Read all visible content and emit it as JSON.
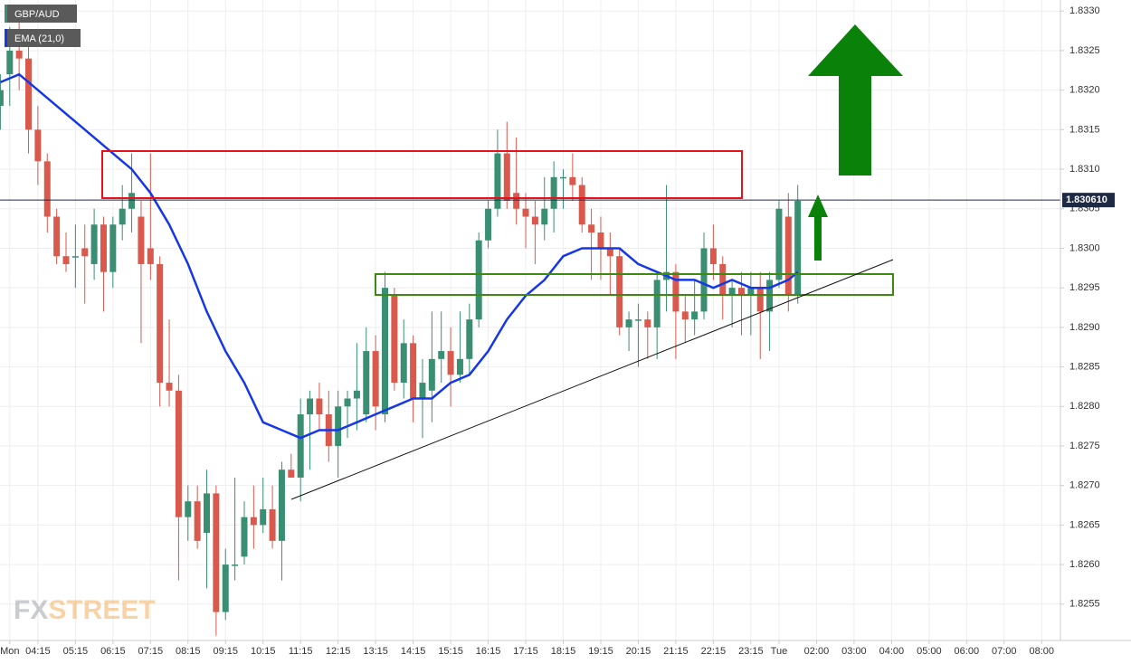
{
  "chart_data": {
    "type": "candlestick",
    "up_color": "#3a8f72",
    "down_color": "#d9594c",
    "grid": true,
    "xlim": [
      3.24,
      31.5
    ],
    "ylim": [
      1.82504,
      1.83314
    ],
    "xticks": [
      {
        "value": 3.5,
        "label": "Mon"
      },
      {
        "value": 4.25,
        "label": "04:15"
      },
      {
        "value": 5.25,
        "label": "05:15"
      },
      {
        "value": 6.25,
        "label": "06:15"
      },
      {
        "value": 7.25,
        "label": "07:15"
      },
      {
        "value": 8.25,
        "label": "08:15"
      },
      {
        "value": 9.25,
        "label": "09:15"
      },
      {
        "value": 10.25,
        "label": "10:15"
      },
      {
        "value": 11.25,
        "label": "11:15"
      },
      {
        "value": 12.25,
        "label": "12:15"
      },
      {
        "value": 13.25,
        "label": "13:15"
      },
      {
        "value": 14.25,
        "label": "14:15"
      },
      {
        "value": 15.25,
        "label": "15:15"
      },
      {
        "value": 16.25,
        "label": "16:15"
      },
      {
        "value": 17.25,
        "label": "17:15"
      },
      {
        "value": 18.25,
        "label": "18:15"
      },
      {
        "value": 19.25,
        "label": "19:15"
      },
      {
        "value": 20.25,
        "label": "20:15"
      },
      {
        "value": 21.25,
        "label": "21:15"
      },
      {
        "value": 22.25,
        "label": "22:15"
      },
      {
        "value": 23.25,
        "label": "23:15"
      },
      {
        "value": 24,
        "label": "Tue"
      },
      {
        "value": 25,
        "label": "02:00"
      },
      {
        "value": 26,
        "label": "03:00"
      },
      {
        "value": 27,
        "label": "04:00"
      },
      {
        "value": 28,
        "label": "05:00"
      },
      {
        "value": 29,
        "label": "06:00"
      },
      {
        "value": 30,
        "label": "07:00"
      },
      {
        "value": 31,
        "label": "08:00"
      }
    ],
    "yticks": [
      {
        "value": 1.833,
        "label": "1.8330"
      },
      1.8325,
      {
        "value": 1.832,
        "label": "1.8320"
      },
      1.8315,
      {
        "value": 1.831,
        "label": "1.8310"
      },
      1.8305,
      {
        "value": 1.83,
        "label": "1.8300"
      },
      1.8295,
      {
        "value": 1.829,
        "label": "1.8290"
      },
      1.8285,
      {
        "value": 1.828,
        "label": "1.8280"
      },
      1.8275,
      {
        "value": 1.827,
        "label": "1.8270"
      },
      1.8265,
      {
        "value": 1.826,
        "label": "1.8260"
      },
      1.8255
    ],
    "last_price": {
      "value": 1.83061,
      "label": "1.830610"
    },
    "watermark": [
      "FX",
      "STREET"
    ],
    "series": [
      {
        "name": "GBP/AUD",
        "x": [
          3.25,
          3.5,
          3.75,
          4,
          4.25,
          4.5,
          4.75,
          5,
          5.25,
          5.5,
          5.75,
          6,
          6.25,
          6.5,
          6.75,
          7,
          7.25,
          7.5,
          7.75,
          8,
          8.25,
          8.5,
          8.75,
          9,
          9.25,
          9.5,
          9.75,
          10,
          10.25,
          10.5,
          10.75,
          11,
          11.25,
          11.5,
          11.75,
          12,
          12.25,
          12.5,
          12.75,
          13,
          13.25,
          13.5,
          13.75,
          14,
          14.25,
          14.5,
          14.75,
          15,
          15.25,
          15.5,
          15.75,
          16,
          16.25,
          16.5,
          16.75,
          17,
          17.25,
          17.5,
          17.75,
          18,
          18.25,
          18.5,
          18.75,
          19,
          19.25,
          19.5,
          19.75,
          20,
          20.25,
          20.5,
          20.75,
          21,
          21.25,
          21.5,
          21.75,
          22,
          22.25,
          22.5,
          22.75,
          23,
          23.25,
          23.5,
          23.75,
          24,
          24.25,
          24.5
        ],
        "open": [
          1.8318,
          1.8322,
          1.8325,
          1.8324,
          1.8315,
          1.8311,
          1.8304,
          1.8299,
          1.8299,
          1.83,
          1.8298,
          1.8303,
          1.8297,
          1.8303,
          1.8305,
          1.8304,
          1.83,
          1.8298,
          1.8283,
          1.8282,
          1.8266,
          1.8268,
          1.8264,
          1.8269,
          1.8254,
          1.826,
          1.8261,
          1.8266,
          1.8265,
          1.8267,
          1.8263,
          1.8272,
          1.8271,
          1.8279,
          1.8281,
          1.8279,
          1.8275,
          1.828,
          1.8281,
          1.8279,
          1.8287,
          1.8279,
          1.8294,
          1.8283,
          1.8288,
          1.8281,
          1.8282,
          1.8286,
          1.8287,
          1.8284,
          1.8286,
          1.8291,
          1.8301,
          1.8305,
          1.8312,
          1.8307,
          1.8305,
          1.8304,
          1.8303,
          1.8305,
          1.8309,
          1.8309,
          1.8308,
          1.8303,
          1.8302,
          1.83,
          1.8299,
          1.829,
          1.8291,
          1.8291,
          1.829,
          1.8296,
          1.8297,
          1.8292,
          1.8291,
          1.8292,
          1.83,
          1.8298,
          1.8294,
          1.8295,
          1.8294,
          1.8295,
          1.8292,
          1.8296,
          1.8304,
          1.8294
        ],
        "high": [
          1.8322,
          1.8328,
          1.8329,
          1.8326,
          1.8318,
          1.8312,
          1.8305,
          1.8302,
          1.8303,
          1.8303,
          1.8305,
          1.8304,
          1.8304,
          1.8308,
          1.8312,
          1.8306,
          1.8312,
          1.8299,
          1.8291,
          1.8284,
          1.827,
          1.827,
          1.8272,
          1.827,
          1.8262,
          1.8271,
          1.8268,
          1.827,
          1.8271,
          1.827,
          1.8273,
          1.8274,
          1.8281,
          1.8282,
          1.8283,
          1.8282,
          1.8282,
          1.8282,
          1.8288,
          1.829,
          1.8289,
          1.8297,
          1.8295,
          1.8291,
          1.8289,
          1.8286,
          1.8292,
          1.8292,
          1.829,
          1.8292,
          1.8293,
          1.8302,
          1.8306,
          1.8315,
          1.8316,
          1.8314,
          1.8307,
          1.8306,
          1.8309,
          1.8311,
          1.831,
          1.8312,
          1.8309,
          1.8305,
          1.8304,
          1.8302,
          1.83,
          1.8292,
          1.8293,
          1.8292,
          1.8297,
          1.8308,
          1.8298,
          1.8294,
          1.8296,
          1.8302,
          1.8303,
          1.8299,
          1.8296,
          1.8297,
          1.8297,
          1.8297,
          1.8297,
          1.8306,
          1.8307,
          1.8308
        ],
        "low": [
          1.8315,
          1.8318,
          1.832,
          1.8312,
          1.8308,
          1.8302,
          1.8298,
          1.8297,
          1.8295,
          1.8293,
          1.8296,
          1.8292,
          1.8295,
          1.8301,
          1.8302,
          1.8288,
          1.8296,
          1.828,
          1.828,
          1.8258,
          1.8263,
          1.8262,
          1.8257,
          1.8251,
          1.8253,
          1.8258,
          1.826,
          1.8262,
          1.8264,
          1.8262,
          1.8258,
          1.8271,
          1.8268,
          1.8272,
          1.8277,
          1.8273,
          1.8271,
          1.8276,
          1.8277,
          1.8278,
          1.8277,
          1.8278,
          1.8282,
          1.8281,
          1.8278,
          1.8276,
          1.8278,
          1.8283,
          1.828,
          1.8283,
          1.8284,
          1.829,
          1.83,
          1.8304,
          1.8305,
          1.8303,
          1.83,
          1.8298,
          1.8301,
          1.8302,
          1.8305,
          1.8306,
          1.8302,
          1.8296,
          1.8296,
          1.8294,
          1.8289,
          1.8287,
          1.8285,
          1.8286,
          1.8286,
          1.8292,
          1.8286,
          1.8288,
          1.8289,
          1.8291,
          1.8296,
          1.8291,
          1.829,
          1.8289,
          1.8289,
          1.8286,
          1.8287,
          1.8295,
          1.8292,
          1.8293
        ],
        "close": [
          1.832,
          1.8325,
          1.8324,
          1.8315,
          1.8311,
          1.8304,
          1.8299,
          1.8298,
          1.8299,
          1.8299,
          1.8303,
          1.8297,
          1.8303,
          1.8305,
          1.8307,
          1.8298,
          1.8298,
          1.8283,
          1.8282,
          1.8266,
          1.8268,
          1.8263,
          1.8269,
          1.8254,
          1.826,
          1.826,
          1.8266,
          1.8265,
          1.8267,
          1.8263,
          1.8272,
          1.8271,
          1.8279,
          1.8281,
          1.8279,
          1.8275,
          1.828,
          1.8281,
          1.8282,
          1.8287,
          1.828,
          1.8295,
          1.8283,
          1.8288,
          1.8281,
          1.8283,
          1.8286,
          1.8287,
          1.8284,
          1.8286,
          1.8291,
          1.8301,
          1.8305,
          1.8312,
          1.8306,
          1.8305,
          1.8304,
          1.8303,
          1.8305,
          1.8309,
          1.8309,
          1.8308,
          1.8303,
          1.8302,
          1.83,
          1.8299,
          1.829,
          1.8291,
          1.8291,
          1.829,
          1.8296,
          1.8297,
          1.8292,
          1.8291,
          1.8292,
          1.83,
          1.8298,
          1.8294,
          1.8295,
          1.8294,
          1.8295,
          1.8292,
          1.8296,
          1.8305,
          1.8294,
          1.8306
        ]
      },
      {
        "name": "EMA (21,0)",
        "color": "#1537e8",
        "x": [
          3.25,
          3.75,
          4.25,
          4.75,
          5.25,
          5.75,
          6.25,
          6.75,
          7.25,
          7.75,
          8.25,
          8.75,
          9.25,
          9.75,
          10.25,
          10.75,
          11.25,
          11.75,
          12.25,
          12.75,
          13.25,
          13.75,
          14.25,
          14.75,
          15.25,
          15.75,
          16.25,
          16.75,
          17.25,
          17.75,
          18.25,
          18.75,
          19.25,
          19.75,
          20.25,
          20.75,
          21.25,
          21.75,
          22.25,
          22.75,
          23.25,
          23.75,
          24.25,
          24.5
        ],
        "values": [
          1.8321,
          1.8322,
          1.832,
          1.8318,
          1.8316,
          1.8314,
          1.8312,
          1.831,
          1.8307,
          1.8303,
          1.8298,
          1.8292,
          1.8287,
          1.8283,
          1.8278,
          1.8277,
          1.8276,
          1.8277,
          1.8277,
          1.8278,
          1.8279,
          1.828,
          1.8281,
          1.8281,
          1.8283,
          1.8284,
          1.8287,
          1.8291,
          1.8294,
          1.8296,
          1.8299,
          1.83,
          1.83,
          1.83,
          1.8298,
          1.8297,
          1.8296,
          1.8296,
          1.8295,
          1.8296,
          1.8295,
          1.8295,
          1.8296,
          1.8297
        ]
      }
    ]
  }
}
